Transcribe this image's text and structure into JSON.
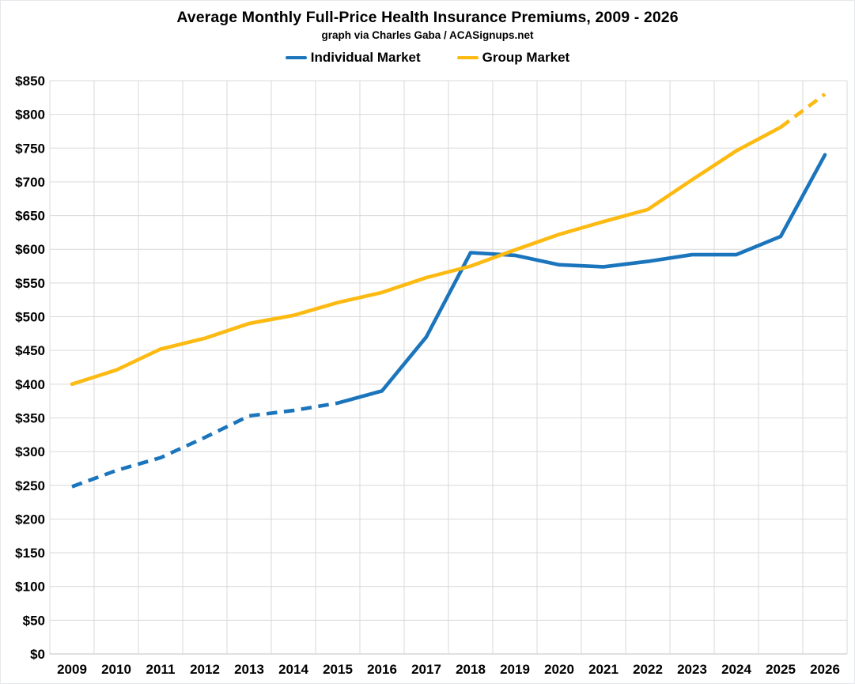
{
  "page": {
    "title": "Average Monthly Full-Price Health Insurance Premiums, 2009 - 2026",
    "subtitle": "graph via Charles Gaba / ACASignups.net"
  },
  "chart_data": {
    "type": "line",
    "title": "Average Monthly Full-Price Health Insurance Premiums, 2009 - 2026",
    "subtitle": "graph via Charles Gaba / ACASignups.net",
    "x": [
      2009,
      2010,
      2011,
      2012,
      2013,
      2014,
      2015,
      2016,
      2017,
      2018,
      2019,
      2020,
      2021,
      2022,
      2023,
      2024,
      2025,
      2026
    ],
    "y_axis": {
      "min": 0,
      "max": 850,
      "step": 50,
      "tick_prefix": "$"
    },
    "grid": true,
    "legend_position": "top",
    "series": [
      {
        "name": "Individual Market",
        "color": "#1B75BC",
        "values": [
          248,
          272,
          291,
          321,
          353,
          361,
          372,
          390,
          470,
          595,
          591,
          577,
          574,
          582,
          592,
          592,
          619,
          740
        ],
        "segments": [
          {
            "style": "dashed",
            "from_index": 0,
            "to_index": 6
          },
          {
            "style": "solid",
            "from_index": 6,
            "to_index": 17
          }
        ]
      },
      {
        "name": "Group Market",
        "color": "#FCBA12",
        "values": [
          400,
          421,
          452,
          468,
          490,
          502,
          521,
          536,
          558,
          575,
          599,
          622,
          641,
          659,
          703,
          746,
          781,
          830
        ],
        "segments": [
          {
            "style": "solid",
            "from_index": 0,
            "to_index": 16
          },
          {
            "style": "dashed",
            "from_index": 16,
            "to_index": 17
          }
        ]
      }
    ]
  },
  "colors": {
    "grid": "#D9D9D9",
    "baseline": "#C0C0C0",
    "text": "#000000",
    "background": "#FFFFFF"
  }
}
